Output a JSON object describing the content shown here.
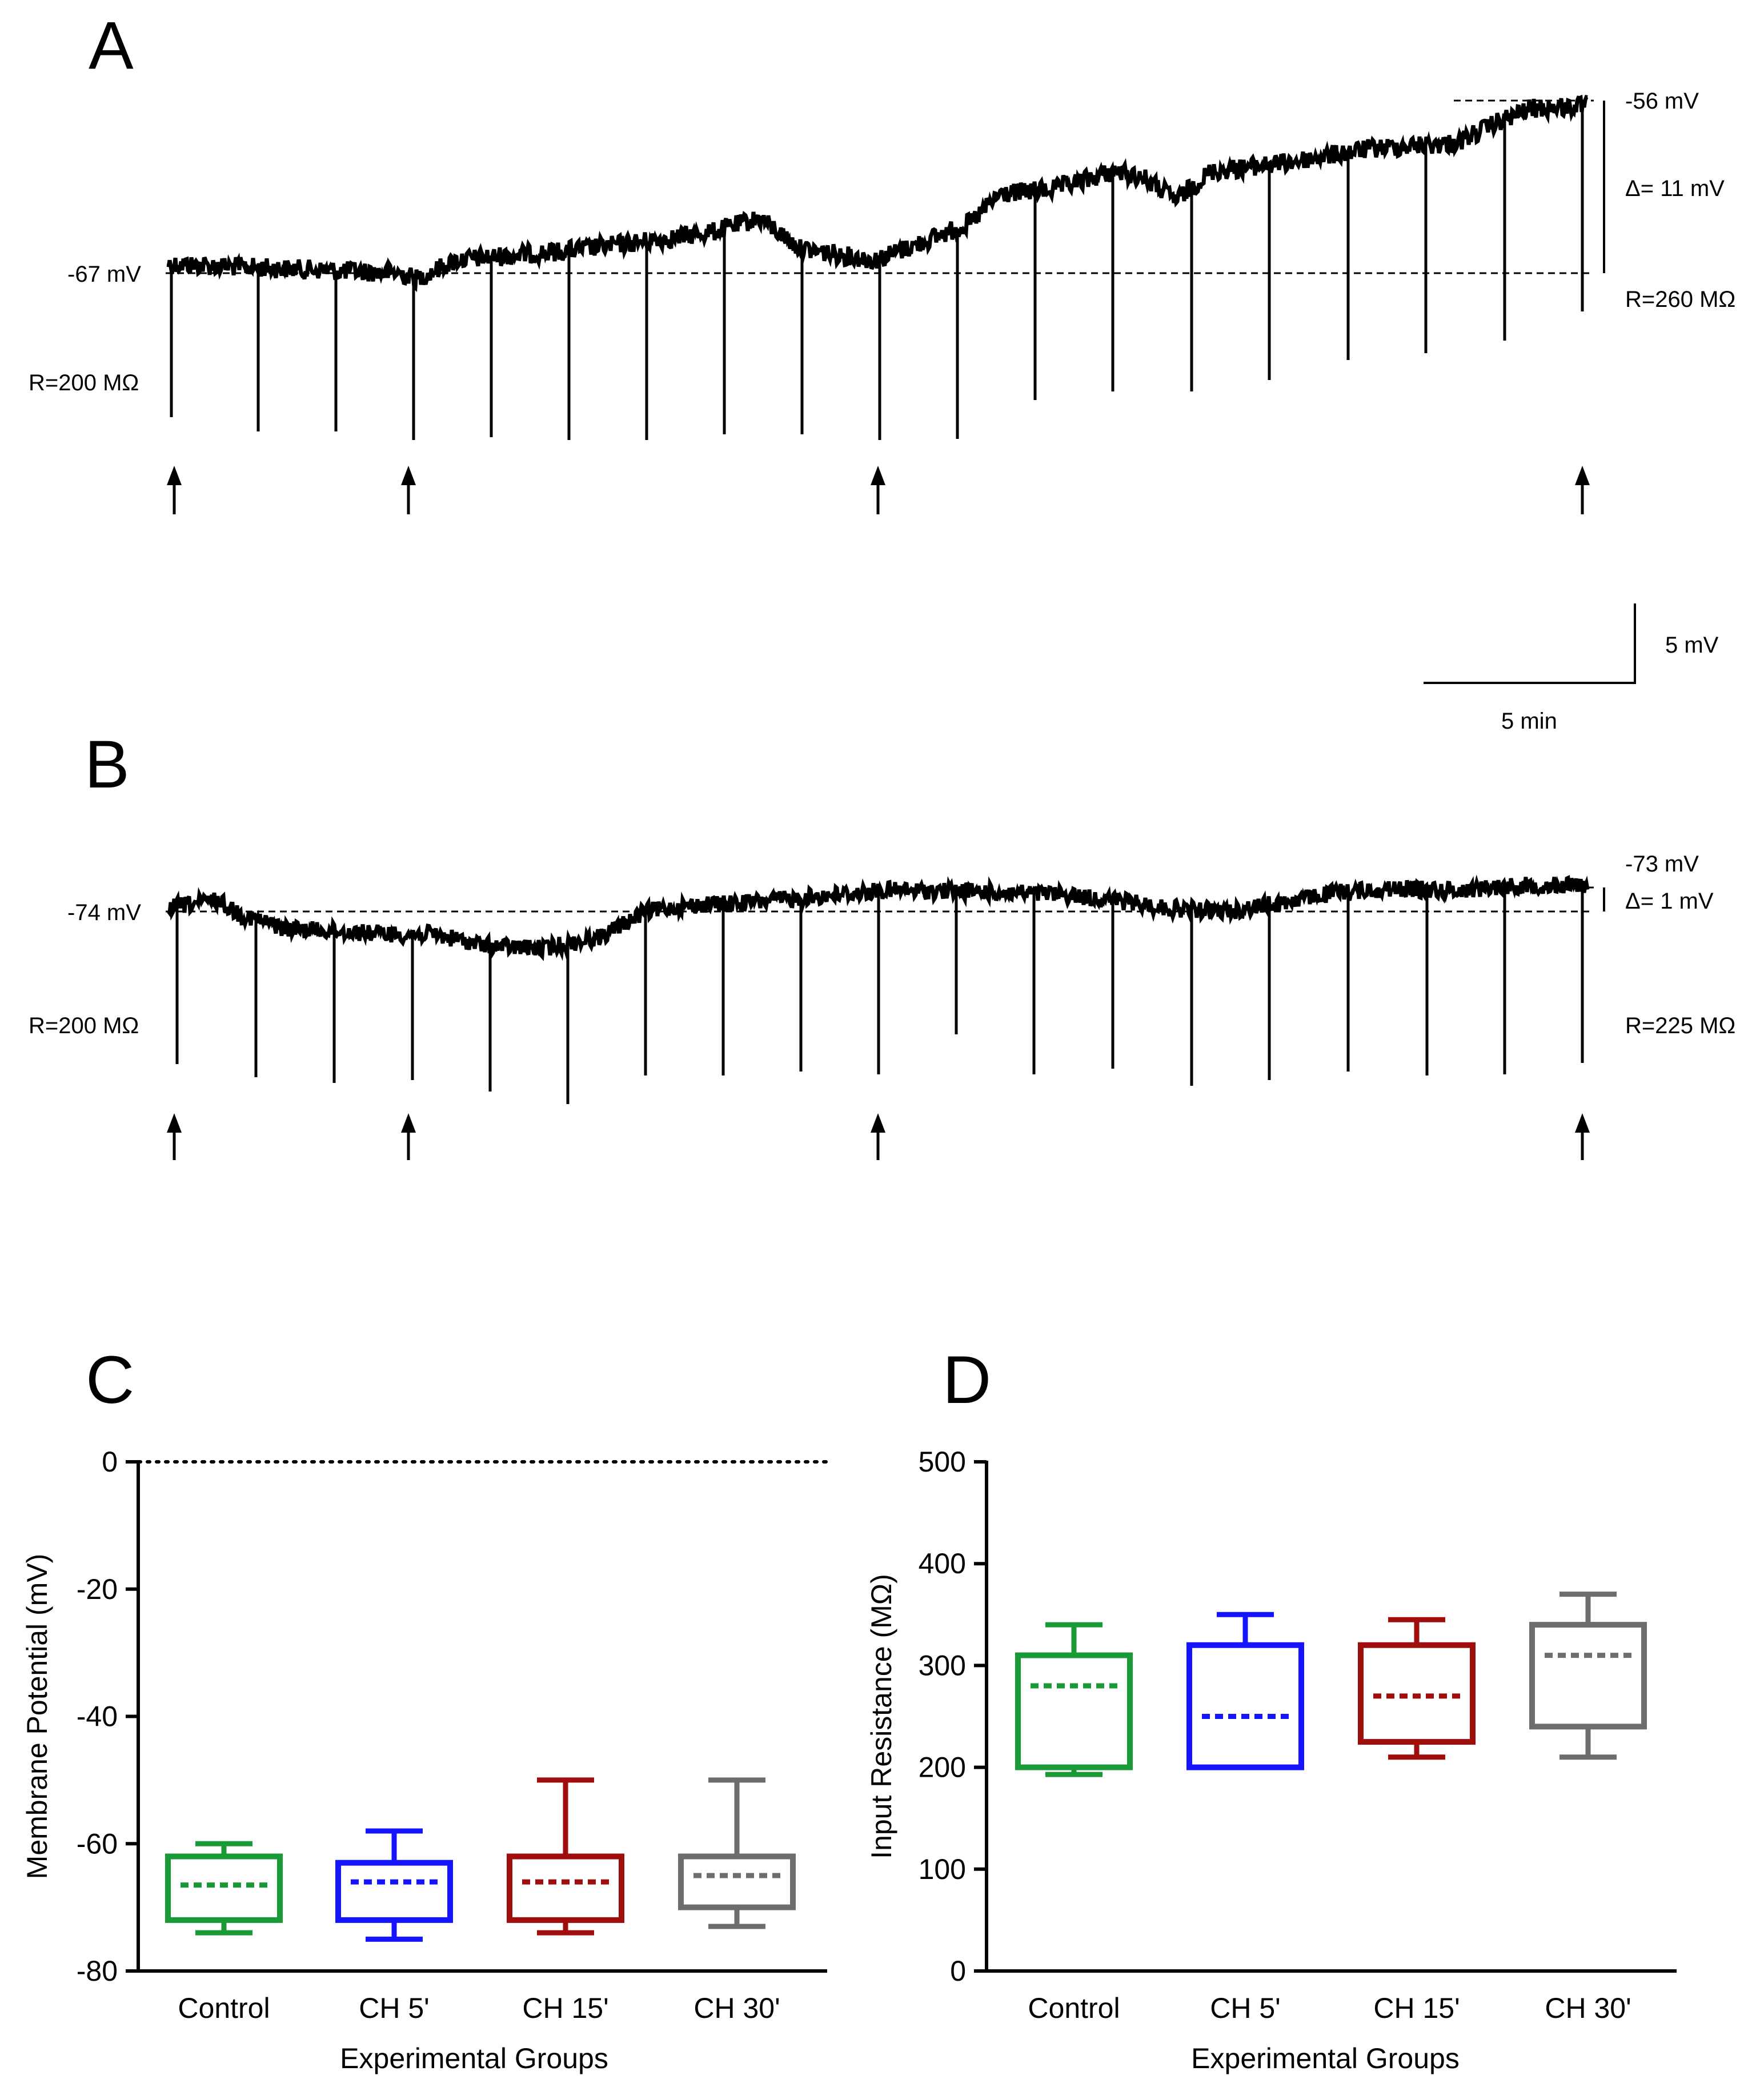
{
  "colors": {
    "control": "#1a9a36",
    "ch5": "#1414ff",
    "ch15": "#a00d0d",
    "ch30": "#6d6d6d",
    "trace": "#000000"
  },
  "panel_a": {
    "label": "A",
    "v_start": "-67 mV",
    "v_end": "-56 mV",
    "delta": "Δ= 11 mV",
    "r_start": "R=200 MΩ",
    "r_end": "R=260 MΩ",
    "baseline_mv": -67,
    "end_mv": -56
  },
  "scalebar": {
    "v_label": "5 mV",
    "t_label": "5 min"
  },
  "panel_b": {
    "label": "B",
    "v_start": "-74 mV",
    "v_end": "-73 mV",
    "delta": "Δ= 1 mV",
    "r_start": "R=200 MΩ",
    "r_end": "R=225 MΩ",
    "baseline_mv": -74,
    "end_mv": -73
  },
  "chart_data": [
    {
      "panel": "C",
      "type": "box",
      "title": "",
      "xlabel": "Experimental Groups",
      "ylabel": "Membrane Potential (mV)",
      "ylim": [
        -80,
        0
      ],
      "yticks": [
        0,
        -20,
        -40,
        -60,
        -80
      ],
      "yticklabels": [
        "0",
        "-20",
        "-40",
        "-60",
        "-80"
      ],
      "reference_line": 0,
      "categories": [
        "Control",
        "CH 5'",
        "CH 15'",
        "CH 30'"
      ],
      "series": [
        {
          "name": "Control",
          "min": -74,
          "q1": -72,
          "median": -66.5,
          "q3": -62,
          "max": -60
        },
        {
          "name": "CH 5'",
          "min": -75,
          "q1": -72,
          "median": -66,
          "q3": -63,
          "max": -58
        },
        {
          "name": "CH 15'",
          "min": -74,
          "q1": -72,
          "median": -66,
          "q3": -62,
          "max": -50
        },
        {
          "name": "CH 30'",
          "min": -73,
          "q1": -70,
          "median": -65,
          "q3": -62,
          "max": -50
        }
      ]
    },
    {
      "panel": "D",
      "type": "box",
      "title": "",
      "xlabel": "Experimental Groups",
      "ylabel": "Input Resistance (MΩ)",
      "ylim": [
        0,
        500
      ],
      "yticks": [
        0,
        100,
        200,
        300,
        400,
        500
      ],
      "yticklabels": [
        "0",
        "100",
        "200",
        "300",
        "400",
        "500"
      ],
      "categories": [
        "Control",
        "CH 5'",
        "CH 15'",
        "CH 30'"
      ],
      "series": [
        {
          "name": "Control",
          "min": 193,
          "q1": 200,
          "median": 280,
          "q3": 310,
          "max": 340
        },
        {
          "name": "CH 5'",
          "min": 200,
          "q1": 200,
          "median": 250,
          "q3": 320,
          "max": 350
        },
        {
          "name": "CH 15'",
          "min": 210,
          "q1": 225,
          "median": 270,
          "q3": 320,
          "max": 345
        },
        {
          "name": "CH 30'",
          "min": 210,
          "q1": 240,
          "median": 310,
          "q3": 340,
          "max": 370
        }
      ]
    }
  ]
}
